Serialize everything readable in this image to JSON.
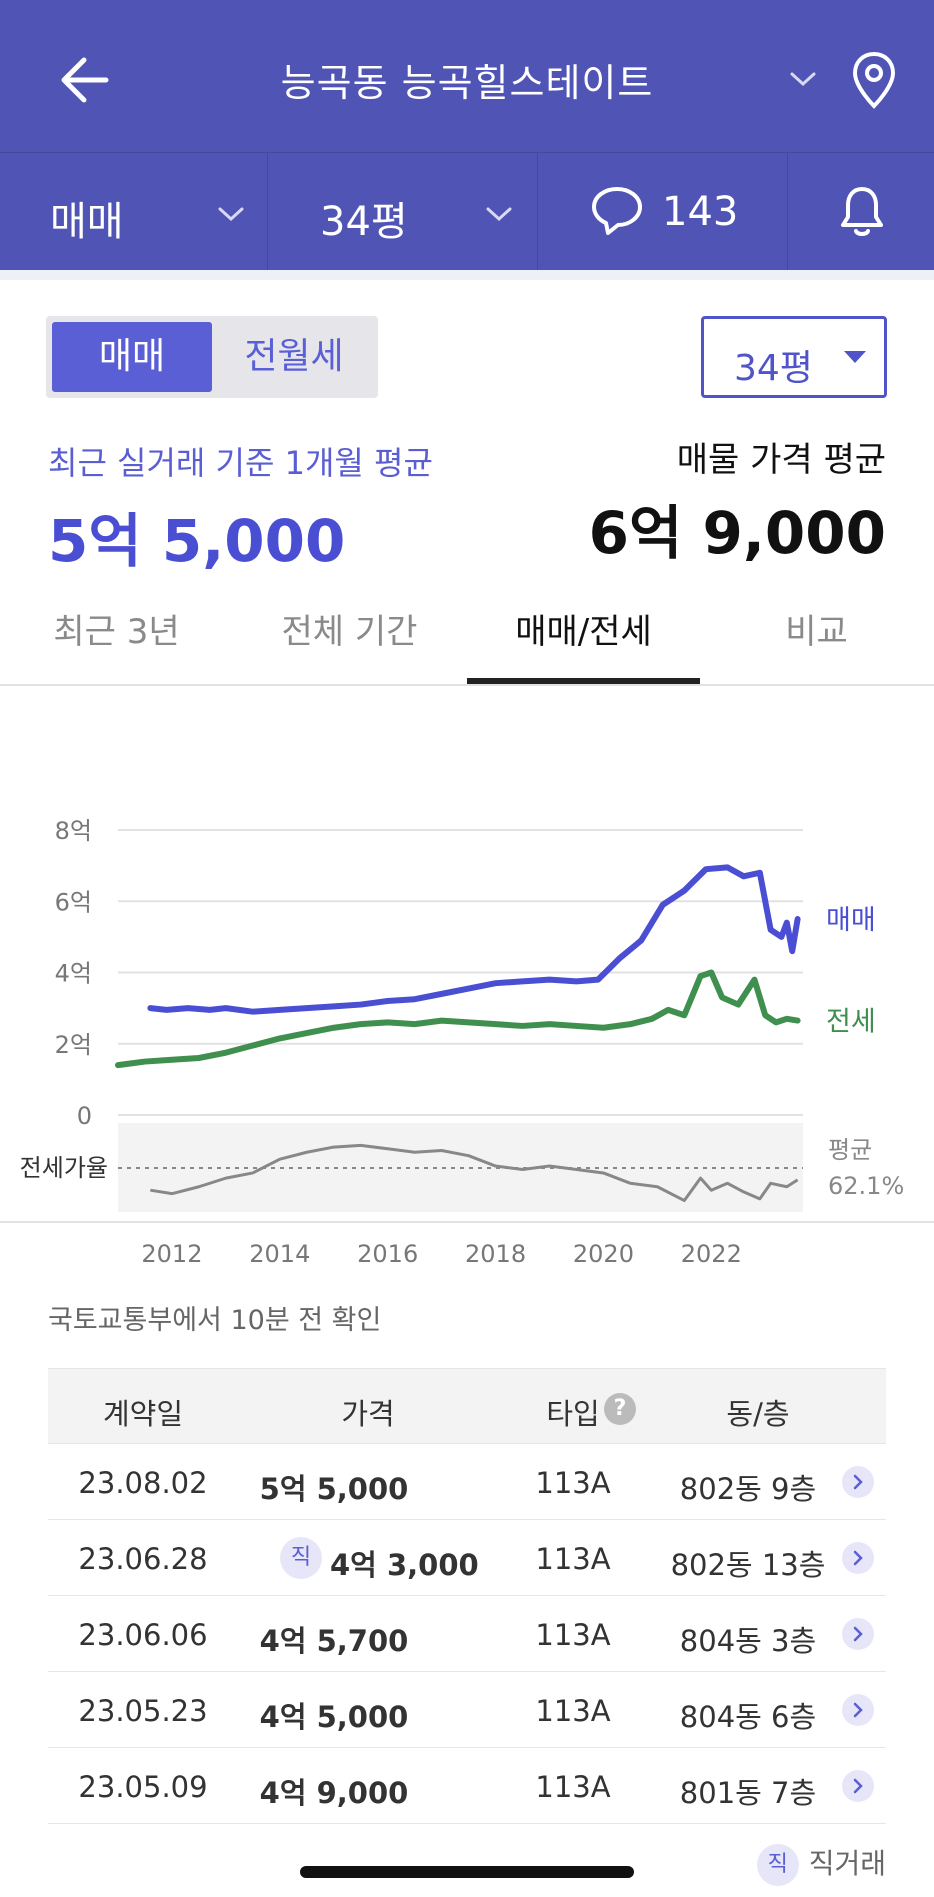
{
  "header": {
    "title": "능곡동 능곡힐스테이트",
    "back_icon": "back-arrow-icon",
    "location_icon": "location-pin-icon"
  },
  "subbar": {
    "deal_type": "매매",
    "size": "34평",
    "comment_count": "143",
    "icons": [
      "chevron-down-icon",
      "comment-icon",
      "bell-icon"
    ]
  },
  "segment": {
    "active": "매매",
    "inactive": "전월세"
  },
  "size_dropdown": "34평",
  "summary": {
    "recent_label": "최근 실거래 기준 1개월 평균",
    "recent_value": "5억 5,000",
    "listing_label": "매물 가격 평균",
    "listing_value": "6억 9,000"
  },
  "tabs": [
    "최근 3년",
    "전체 기간",
    "매매/전세",
    "비교"
  ],
  "active_tab": "매매/전세",
  "chart_data": {
    "type": "line",
    "y_axis": {
      "labels": [
        "8억",
        "6억",
        "4억",
        "2억",
        "0"
      ],
      "range": [
        0,
        8
      ],
      "unit": "억"
    },
    "x_axis": {
      "labels": [
        "2012",
        "2014",
        "2016",
        "2018",
        "2020",
        "2022"
      ],
      "range": [
        2011.0,
        2023.7
      ]
    },
    "grid": true,
    "legend_placement": "right",
    "series": [
      {
        "name": "매매",
        "color": "#4a4ed2",
        "points": [
          [
            2011.6,
            3.0
          ],
          [
            2011.9,
            2.95
          ],
          [
            2012.3,
            3.0
          ],
          [
            2012.7,
            2.95
          ],
          [
            2013.0,
            3.0
          ],
          [
            2013.5,
            2.9
          ],
          [
            2014.0,
            2.95
          ],
          [
            2014.5,
            3.0
          ],
          [
            2015.0,
            3.05
          ],
          [
            2015.5,
            3.1
          ],
          [
            2016.0,
            3.2
          ],
          [
            2016.5,
            3.25
          ],
          [
            2017.0,
            3.4
          ],
          [
            2017.5,
            3.55
          ],
          [
            2018.0,
            3.7
          ],
          [
            2018.5,
            3.75
          ],
          [
            2019.0,
            3.8
          ],
          [
            2019.5,
            3.75
          ],
          [
            2019.9,
            3.8
          ],
          [
            2020.3,
            4.4
          ],
          [
            2020.7,
            4.9
          ],
          [
            2021.1,
            5.9
          ],
          [
            2021.5,
            6.3
          ],
          [
            2021.9,
            6.9
          ],
          [
            2022.3,
            6.95
          ],
          [
            2022.6,
            6.7
          ],
          [
            2022.9,
            6.8
          ],
          [
            2023.1,
            5.2
          ],
          [
            2023.3,
            5.0
          ],
          [
            2023.4,
            5.4
          ],
          [
            2023.5,
            4.6
          ],
          [
            2023.6,
            5.5
          ]
        ]
      },
      {
        "name": "전세",
        "color": "#3f8f4e",
        "points": [
          [
            2011.0,
            1.4
          ],
          [
            2011.5,
            1.5
          ],
          [
            2012.0,
            1.55
          ],
          [
            2012.5,
            1.6
          ],
          [
            2013.0,
            1.75
          ],
          [
            2013.5,
            1.95
          ],
          [
            2014.0,
            2.15
          ],
          [
            2014.5,
            2.3
          ],
          [
            2015.0,
            2.45
          ],
          [
            2015.5,
            2.55
          ],
          [
            2016.0,
            2.6
          ],
          [
            2016.5,
            2.55
          ],
          [
            2017.0,
            2.65
          ],
          [
            2017.5,
            2.6
          ],
          [
            2018.0,
            2.55
          ],
          [
            2018.5,
            2.5
          ],
          [
            2019.0,
            2.55
          ],
          [
            2019.5,
            2.5
          ],
          [
            2020.0,
            2.45
          ],
          [
            2020.5,
            2.55
          ],
          [
            2020.9,
            2.7
          ],
          [
            2021.2,
            2.95
          ],
          [
            2021.5,
            2.8
          ],
          [
            2021.8,
            3.9
          ],
          [
            2022.0,
            4.0
          ],
          [
            2022.2,
            3.3
          ],
          [
            2022.5,
            3.1
          ],
          [
            2022.8,
            3.8
          ],
          [
            2023.0,
            2.8
          ],
          [
            2023.2,
            2.6
          ],
          [
            2023.4,
            2.7
          ],
          [
            2023.6,
            2.65
          ]
        ]
      },
      {
        "name": "전세가율",
        "color": "#888888",
        "points": [
          [
            2011.6,
            48
          ],
          [
            2012.0,
            46
          ],
          [
            2012.5,
            50
          ],
          [
            2013.0,
            55
          ],
          [
            2013.5,
            58
          ],
          [
            2014.0,
            66
          ],
          [
            2014.5,
            70
          ],
          [
            2015.0,
            73
          ],
          [
            2015.5,
            74
          ],
          [
            2016.0,
            72
          ],
          [
            2016.5,
            70
          ],
          [
            2017.0,
            71
          ],
          [
            2017.5,
            68
          ],
          [
            2018.0,
            62
          ],
          [
            2018.5,
            60
          ],
          [
            2019.0,
            62
          ],
          [
            2019.5,
            60
          ],
          [
            2020.0,
            58
          ],
          [
            2020.5,
            52
          ],
          [
            2021.0,
            50
          ],
          [
            2021.5,
            42
          ],
          [
            2021.8,
            55
          ],
          [
            2022.0,
            48
          ],
          [
            2022.3,
            52
          ],
          [
            2022.6,
            47
          ],
          [
            2022.9,
            43
          ],
          [
            2023.1,
            52
          ],
          [
            2023.4,
            50
          ],
          [
            2023.6,
            54
          ]
        ]
      }
    ],
    "ratio_label": "전세가율",
    "ratio_average_label": "평균",
    "ratio_average": "62.1%"
  },
  "source_text": "국토교통부에서 10분 전 확인",
  "table": {
    "headers": [
      "계약일",
      "가격",
      "타입",
      "동/층"
    ],
    "rows": [
      {
        "date": "23.08.02",
        "price": "5억 5,000",
        "direct": false,
        "type": "113A",
        "unit": "802동 9층"
      },
      {
        "date": "23.06.28",
        "price": "4억 3,000",
        "direct": true,
        "type": "113A",
        "unit": "802동 13층"
      },
      {
        "date": "23.06.06",
        "price": "4억 5,700",
        "direct": false,
        "type": "113A",
        "unit": "804동 3층"
      },
      {
        "date": "23.05.23",
        "price": "4억 5,000",
        "direct": false,
        "type": "113A",
        "unit": "804동 6층"
      },
      {
        "date": "23.05.09",
        "price": "4억 9,000",
        "direct": false,
        "type": "113A",
        "unit": "801동 7층"
      }
    ],
    "direct_badge": "직",
    "direct_legend": "직거래"
  }
}
